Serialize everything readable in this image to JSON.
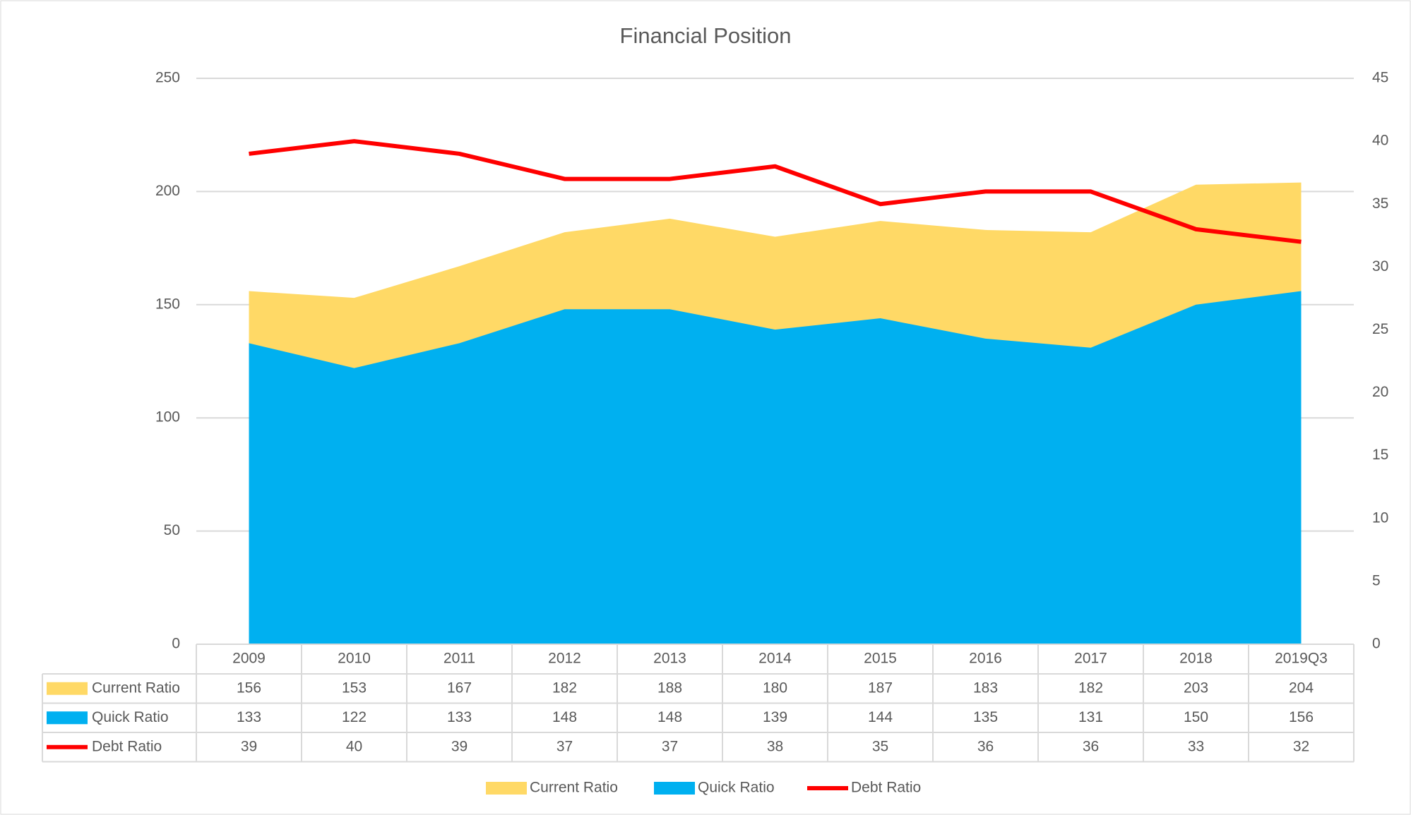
{
  "chart_data": {
    "type": "area",
    "title": "Financial Position",
    "categories": [
      "2009",
      "2010",
      "2011",
      "2012",
      "2013",
      "2014",
      "2015",
      "2016",
      "2017",
      "2018",
      "2019Q3"
    ],
    "series": [
      {
        "name": "Current Ratio",
        "type": "area",
        "color": "#FFD966",
        "values": [
          156,
          153,
          167,
          182,
          188,
          180,
          187,
          183,
          182,
          203,
          204
        ]
      },
      {
        "name": "Quick Ratio",
        "type": "area",
        "color": "#00B0F0",
        "values": [
          133,
          122,
          133,
          148,
          148,
          139,
          144,
          135,
          131,
          150,
          156
        ]
      },
      {
        "name": "Debt Ratio",
        "type": "line",
        "axis": "y2",
        "color": "#FF0000",
        "values": [
          39,
          40,
          39,
          37,
          37,
          38,
          35,
          36,
          36,
          33,
          32
        ]
      }
    ],
    "ylim": [
      0,
      250
    ],
    "yticks": [
      0,
      50,
      100,
      150,
      200,
      250
    ],
    "y2lim": [
      0,
      45
    ],
    "y2ticks": [
      0,
      5,
      10,
      15,
      20,
      25,
      30,
      35,
      40,
      45
    ],
    "grid": true,
    "legend": "bottom",
    "data_table": true
  }
}
